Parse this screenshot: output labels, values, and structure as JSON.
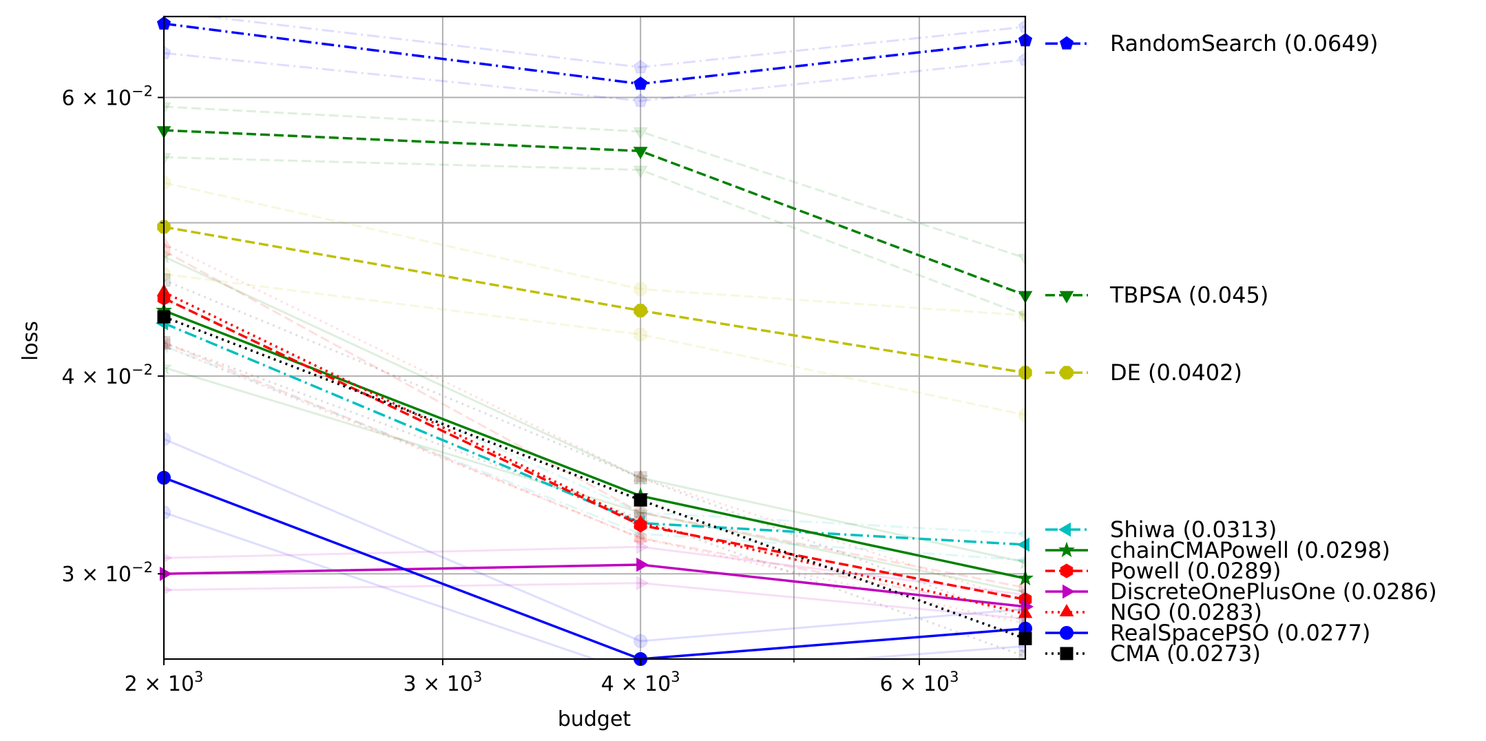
{
  "chart_data": {
    "type": "line",
    "xlabel": "budget",
    "ylabel": "loss",
    "x_scale": "log",
    "y_scale": "log",
    "xlim": [
      2000,
      7000
    ],
    "ylim": [
      0.0265,
      0.0675
    ],
    "grid": true,
    "legend_placement": "outside-right",
    "x_ticks": [
      {
        "value": 2000,
        "base": "2 × 10",
        "exp": "3"
      },
      {
        "value": 3000,
        "base": "3 × 10",
        "exp": "3"
      },
      {
        "value": 4000,
        "base": "4 × 10",
        "exp": "3"
      },
      {
        "value": 6000,
        "base": "6 × 10",
        "exp": "3"
      }
    ],
    "x_minor_grid": [
      5000
    ],
    "y_ticks": [
      {
        "value": 0.03,
        "base": "3 × 10",
        "exp": "−2"
      },
      {
        "value": 0.04,
        "base": "4 × 10",
        "exp": "−2"
      },
      {
        "value": 0.06,
        "base": "6 × 10",
        "exp": "−2"
      }
    ],
    "y_minor_grid": [
      0.05
    ],
    "x": [
      2000,
      4000,
      7000
    ],
    "series": [
      {
        "name": "RandomSearch (0.0649)",
        "values": [
          0.0668,
          0.0612,
          0.0652
        ],
        "color": "#0000ff",
        "dash": "dashdot",
        "marker": "pentagon",
        "legend_value": 0.0649
      },
      {
        "name": "TBPSA (0.045)",
        "values": [
          0.0572,
          0.0555,
          0.045
        ],
        "color": "#008000",
        "dash": "dashed",
        "marker": "triangle-down",
        "legend_value": 0.045
      },
      {
        "name": "DE (0.0402)",
        "values": [
          0.0497,
          0.044,
          0.0402
        ],
        "color": "#bfbf00",
        "dash": "dashed",
        "marker": "octagon",
        "legend_value": 0.0402
      },
      {
        "name": "Shiwa (0.0313)",
        "values": [
          0.0432,
          0.0323,
          0.0313
        ],
        "color": "#00bfbf",
        "dash": "dashdot",
        "marker": "triangle-left",
        "legend_value": 0.0313
      },
      {
        "name": "chainCMAPowell (0.0298)",
        "values": [
          0.044,
          0.0336,
          0.0298
        ],
        "color": "#008000",
        "dash": "solid",
        "marker": "star",
        "legend_value": 0.0298
      },
      {
        "name": "Powell (0.0289)",
        "values": [
          0.0448,
          0.0322,
          0.0289
        ],
        "color": "#ff0000",
        "dash": "dashed",
        "marker": "hexagon",
        "legend_value": 0.0289
      },
      {
        "name": "DiscreteOnePlusOne (0.0286)",
        "values": [
          0.03,
          0.0304,
          0.0286
        ],
        "color": "#bf00bf",
        "dash": "solid",
        "marker": "triangle-right",
        "legend_value": 0.0286
      },
      {
        "name": "NGO (0.0283)",
        "values": [
          0.0452,
          0.0323,
          0.0283
        ],
        "color": "#ff0000",
        "dash": "dotted",
        "marker": "triangle-up",
        "legend_value": 0.0283
      },
      {
        "name": "RealSpacePSO (0.0277)",
        "values": [
          0.0345,
          0.0265,
          0.0277
        ],
        "color": "#0000ff",
        "dash": "solid",
        "marker": "circle",
        "legend_value": 0.0277
      },
      {
        "name": "CMA (0.0273)",
        "values": [
          0.0436,
          0.0334,
          0.0273
        ],
        "color": "#000000",
        "dash": "dotted",
        "marker": "square",
        "legend_value": 0.0273
      }
    ],
    "faint_series": [
      {
        "values": [
          0.068,
          0.0627,
          0.0665
        ],
        "color": "#0000ff",
        "dash": "dashdot",
        "marker": "pentagon"
      },
      {
        "values": [
          0.064,
          0.0597,
          0.0634
        ],
        "color": "#0000ff",
        "dash": "dashdot",
        "marker": "pentagon"
      },
      {
        "values": [
          0.0592,
          0.0571,
          0.0475
        ],
        "color": "#008000",
        "dash": "dashed",
        "marker": "triangle-down"
      },
      {
        "values": [
          0.055,
          0.054,
          0.0437
        ],
        "color": "#008000",
        "dash": "dashed",
        "marker": "triangle-down"
      },
      {
        "values": [
          0.053,
          0.0454,
          0.0437
        ],
        "color": "#bfbf00",
        "dash": "dashed",
        "marker": "octagon"
      },
      {
        "values": [
          0.0464,
          0.0425,
          0.0378
        ],
        "color": "#bfbf00",
        "dash": "dashed",
        "marker": "octagon"
      },
      {
        "values": [
          0.0448,
          0.0328,
          0.0318
        ],
        "color": "#00bfbf",
        "dash": "dashdot",
        "marker": "triangle-left"
      },
      {
        "values": [
          0.0418,
          0.0318,
          0.0306
        ],
        "color": "#00bfbf",
        "dash": "dashdot",
        "marker": "triangle-left"
      },
      {
        "values": [
          0.0476,
          0.0345,
          0.0305
        ],
        "color": "#008000",
        "dash": "solid",
        "marker": "star"
      },
      {
        "values": [
          0.0405,
          0.0328,
          0.0292
        ],
        "color": "#008000",
        "dash": "solid",
        "marker": "star"
      },
      {
        "values": [
          0.048,
          0.0328,
          0.0294
        ],
        "color": "#ff0000",
        "dash": "dashed",
        "marker": "hexagon"
      },
      {
        "values": [
          0.042,
          0.0316,
          0.0284
        ],
        "color": "#ff0000",
        "dash": "dashed",
        "marker": "hexagon"
      },
      {
        "values": [
          0.0307,
          0.0312,
          0.0291
        ],
        "color": "#bf00bf",
        "dash": "solid",
        "marker": "triangle-right"
      },
      {
        "values": [
          0.0293,
          0.0296,
          0.0281
        ],
        "color": "#bf00bf",
        "dash": "solid",
        "marker": "triangle-right"
      },
      {
        "values": [
          0.0485,
          0.0345,
          0.0288
        ],
        "color": "#ff0000",
        "dash": "dotted",
        "marker": "triangle-up"
      },
      {
        "values": [
          0.0418,
          0.0316,
          0.0279
        ],
        "color": "#ff0000",
        "dash": "dotted",
        "marker": "triangle-up"
      },
      {
        "values": [
          0.0365,
          0.0272,
          0.0285
        ],
        "color": "#0000ff",
        "dash": "solid",
        "marker": "circle"
      },
      {
        "values": [
          0.0328,
          0.0259,
          0.027
        ],
        "color": "#0000ff",
        "dash": "solid",
        "marker": "circle"
      },
      {
        "values": [
          0.046,
          0.0345,
          0.028
        ],
        "color": "#000000",
        "dash": "dotted",
        "marker": "square"
      },
      {
        "values": [
          0.042,
          0.0325,
          0.0266
        ],
        "color": "#000000",
        "dash": "dotted",
        "marker": "square"
      }
    ]
  }
}
